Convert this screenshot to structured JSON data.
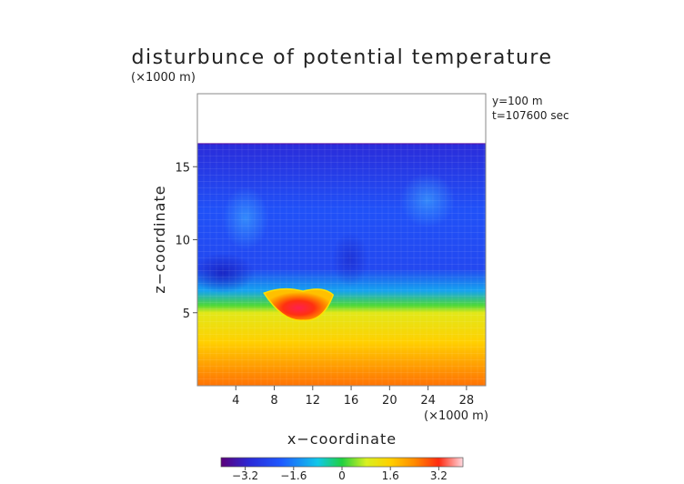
{
  "chart_data": {
    "type": "heatmap",
    "title": "disturbunce of potential temperature",
    "ylabel": "z−coordinate",
    "xlabel": "x−coordinate",
    "y_unit": "(×1000 m)",
    "x_unit": "(×1000 m)",
    "annotations": [
      "y=100 m",
      "t=107600 sec"
    ],
    "xlim": [
      0,
      30
    ],
    "ylim": [
      0,
      20
    ],
    "x_ticks": [
      4,
      8,
      12,
      16,
      20,
      24,
      28
    ],
    "y_ticks": [
      5,
      10,
      15
    ],
    "colorbar": {
      "range": [
        -4,
        4
      ],
      "ticks": [
        "−3.2",
        "−1.6",
        "0",
        "1.6",
        "3.2"
      ],
      "tick_values": [
        -3.2,
        -1.6,
        0,
        1.6,
        3.2
      ]
    },
    "field_top_z": 16.6,
    "field_summary": [
      {
        "z": 16.5,
        "value": -3.0
      },
      {
        "z": 12.0,
        "value": -2.2
      },
      {
        "z": 8.0,
        "value": -2.4
      },
      {
        "z": 6.5,
        "value": -1.2
      },
      {
        "z": 5.5,
        "value": 0.2
      },
      {
        "z": 5.0,
        "value": 1.0
      },
      {
        "z": 3.0,
        "value": 1.6
      },
      {
        "z": 0.0,
        "value": 2.6
      }
    ],
    "features": [
      {
        "label": "warm anomaly",
        "x": 11.0,
        "z": 5.1,
        "value": 3.6
      }
    ]
  }
}
